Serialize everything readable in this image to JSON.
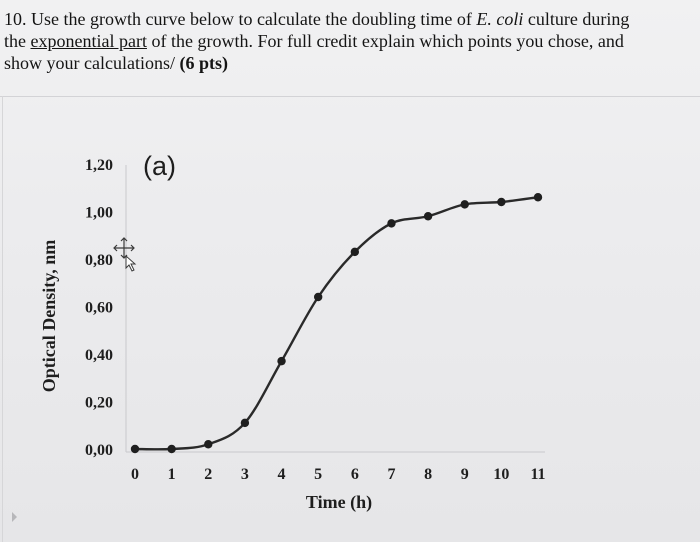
{
  "question": {
    "line1_prefix": "10. Use the growth curve below to calculate the doubling time of ",
    "organism": "E. coli",
    "line1_suffix": " culture during",
    "line2_prefix": "the ",
    "underlined": "exponential part",
    "line2_suffix": " of the growth. For full credit explain which points you chose, and",
    "line3": "show your calculations/ ",
    "points": "(6 pts)"
  },
  "chart_data": {
    "type": "line",
    "panel_label": "(a)",
    "xlabel": "Time (h)",
    "ylabel": "Optical Density, nm",
    "x": [
      0,
      1,
      2,
      3,
      4,
      5,
      6,
      7,
      8,
      9,
      10,
      11
    ],
    "x_tick_labels": [
      "0",
      "1",
      "2",
      "3",
      "4",
      "5",
      "6",
      "7",
      "8",
      "9",
      "10",
      "11"
    ],
    "y_tick_values": [
      0,
      0.2,
      0.4,
      0.6,
      0.8,
      1.0,
      1.2
    ],
    "y_tick_labels": [
      "0,00",
      "0,20",
      "0,40",
      "0,60",
      "0,80",
      "1,00",
      "1,20"
    ],
    "ylim": [
      0,
      1.2
    ],
    "xlim": [
      0,
      11
    ],
    "series": [
      {
        "values": [
          0.0,
          0.0,
          0.02,
          0.11,
          0.37,
          0.64,
          0.83,
          0.95,
          0.98,
          1.03,
          1.04,
          1.06
        ]
      }
    ],
    "grid": false,
    "colors": {
      "line": "#2a2a2a",
      "marker": "#1f1f1f",
      "axis": "#c9c9cc"
    }
  }
}
